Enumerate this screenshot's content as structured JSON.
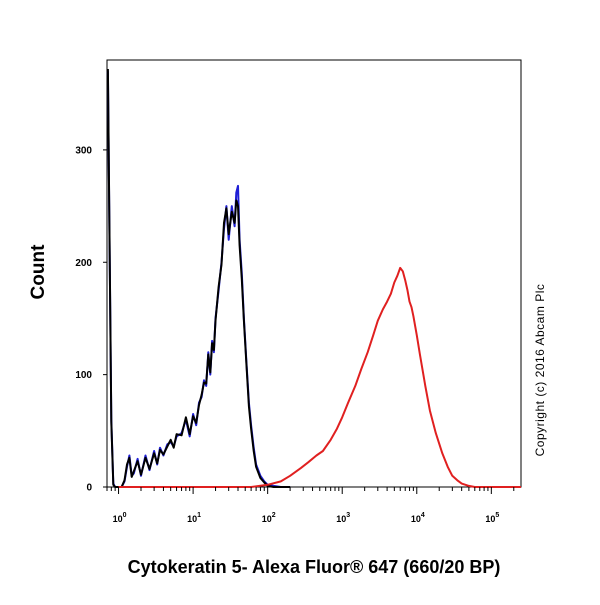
{
  "chart_data": {
    "type": "line",
    "xlabel": "Cytokeratin 5- Alexa Fluor® 647 (660/20 BP)",
    "ylabel": "Count",
    "x_scale": "log",
    "xlim": [
      0.7,
      250000
    ],
    "ylim": [
      0,
      380
    ],
    "x_ticks": [
      {
        "value": 1,
        "base": "10",
        "exp": "0"
      },
      {
        "value": 10,
        "base": "10",
        "exp": "1"
      },
      {
        "value": 100,
        "base": "10",
        "exp": "2"
      },
      {
        "value": 1000,
        "base": "10",
        "exp": "3"
      },
      {
        "value": 10000,
        "base": "10",
        "exp": "4"
      },
      {
        "value": 100000,
        "base": "10",
        "exp": "5"
      }
    ],
    "y_ticks": [
      {
        "value": 0,
        "label": "0"
      },
      {
        "value": 100,
        "label": "100"
      },
      {
        "value": 200,
        "label": "200"
      },
      {
        "value": 300,
        "label": "300"
      }
    ],
    "grid": false,
    "annotation": "Copyright (c) 2016 Abcam Plc",
    "series": [
      {
        "color": "#1f1fd6",
        "x": [
          0.72,
          0.75,
          0.8,
          0.85,
          0.9,
          1.0,
          1.1,
          1.2,
          1.3,
          1.4,
          1.5,
          1.6,
          1.8,
          2.0,
          2.3,
          2.6,
          3.0,
          3.3,
          3.6,
          4.0,
          4.5,
          5.0,
          5.5,
          6.0,
          7.0,
          8.0,
          9.0,
          10.0,
          11.0,
          12.0,
          13.0,
          14.0,
          15.0,
          16.0,
          17.0,
          18.0,
          19.0,
          20.0,
          22.0,
          24.0,
          26.0,
          28.0,
          30.0,
          33.0,
          36.0,
          38.0,
          40.0,
          42.0,
          45.0,
          48.0,
          52.0,
          56.0,
          60.0,
          65.0,
          70.0,
          80.0,
          90.0,
          100.0,
          120.0,
          150.0,
          200.0
        ],
        "y": [
          370,
          250,
          60,
          3,
          0,
          0,
          0,
          5,
          18,
          28,
          10,
          12,
          25,
          10,
          28,
          15,
          32,
          20,
          35,
          28,
          38,
          40,
          36,
          45,
          48,
          60,
          45,
          65,
          55,
          75,
          80,
          95,
          90,
          120,
          100,
          130,
          120,
          150,
          175,
          200,
          230,
          250,
          220,
          250,
          232,
          262,
          268,
          220,
          190,
          150,
          110,
          75,
          55,
          35,
          20,
          10,
          5,
          2,
          1,
          0,
          0
        ]
      },
      {
        "color": "#000000",
        "x": [
          0.72,
          0.75,
          0.8,
          0.85,
          0.9,
          1.0,
          1.1,
          1.2,
          1.3,
          1.4,
          1.5,
          1.6,
          1.8,
          2.0,
          2.3,
          2.6,
          3.0,
          3.3,
          3.6,
          4.0,
          4.5,
          5.0,
          5.5,
          6.0,
          7.0,
          8.0,
          9.0,
          10.0,
          11.0,
          12.0,
          13.0,
          14.0,
          15.0,
          16.0,
          17.0,
          18.0,
          19.0,
          20.0,
          22.0,
          24.0,
          26.0,
          28.0,
          30.0,
          33.0,
          36.0,
          38.0,
          40.0,
          42.0,
          45.0,
          48.0,
          52.0,
          56.0,
          60.0,
          65.0,
          70.0,
          80.0,
          90.0,
          100.0,
          120.0,
          150.0,
          200.0
        ],
        "y": [
          372,
          252,
          58,
          2,
          0,
          0,
          0,
          6,
          20,
          26,
          9,
          14,
          23,
          11,
          26,
          16,
          30,
          21,
          33,
          29,
          36,
          42,
          35,
          47,
          46,
          62,
          47,
          63,
          57,
          73,
          82,
          93,
          92,
          118,
          102,
          128,
          122,
          148,
          178,
          198,
          235,
          248,
          225,
          245,
          235,
          255,
          250,
          215,
          185,
          148,
          108,
          72,
          52,
          32,
          18,
          8,
          4,
          1,
          0,
          0,
          0
        ]
      },
      {
        "color": "#e02020",
        "x": [
          1.0,
          20.0,
          60.0,
          100.0,
          150.0,
          200.0,
          280.0,
          350.0,
          450.0,
          550.0,
          700.0,
          850.0,
          1000.0,
          1200.0,
          1500.0,
          1800.0,
          2200.0,
          2600.0,
          3000.0,
          3500.0,
          4000.0,
          4500.0,
          5000.0,
          5500.0,
          6000.0,
          6500.0,
          7000.0,
          7500.0,
          8000.0,
          8500.0,
          9000.0,
          10000.0,
          11000.0,
          13000.0,
          15000.0,
          18000.0,
          22000.0,
          26000.0,
          30000.0,
          35000.0,
          40000.0,
          50000.0,
          60000.0,
          80000.0,
          100000.0,
          200000.0,
          250000.0
        ],
        "y": [
          0,
          0,
          0,
          2,
          5,
          10,
          17,
          22,
          28,
          32,
          42,
          52,
          62,
          75,
          90,
          105,
          120,
          135,
          148,
          158,
          165,
          172,
          182,
          188,
          195,
          192,
          184,
          175,
          165,
          160,
          152,
          135,
          118,
          90,
          68,
          48,
          30,
          18,
          10,
          6,
          3,
          1,
          0,
          0,
          0,
          0,
          0
        ]
      }
    ]
  }
}
